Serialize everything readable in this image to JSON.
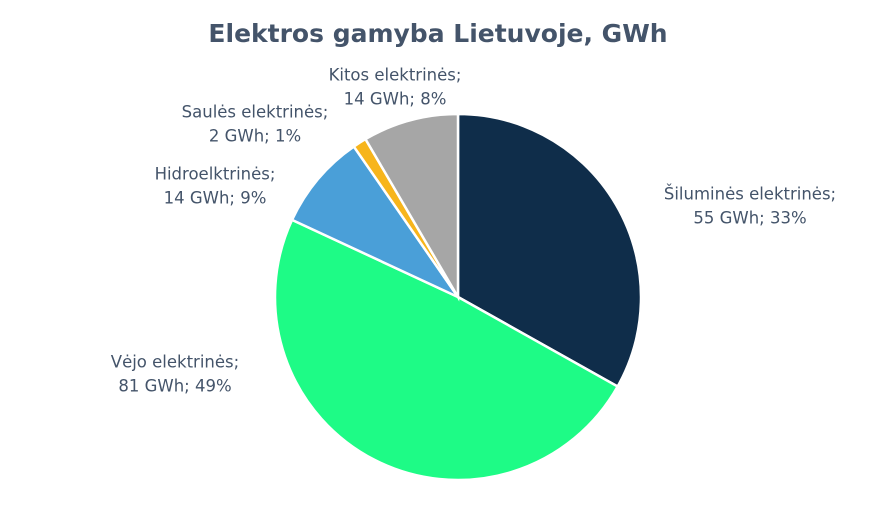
{
  "chart_data": {
    "type": "pie",
    "title": "Elektros gamyba Lietuvoje, GWh",
    "categories": [
      "Šiluminės elektrinės;",
      "Vėjo elektrinės;",
      "Hidroelktrinės;",
      "Saulės elektrinės;",
      "Kitos elektrinės;"
    ],
    "values": [
      55,
      81,
      14,
      2,
      14
    ],
    "value_labels": [
      "55 GWh; 33%",
      "81 GWh; 49%",
      "14 GWh; 9%",
      "2 GWh; 1%",
      "14 GWh; 8%"
    ],
    "colors": [
      "#0f2d4a",
      "#1efb86",
      "#4a9fd8",
      "#f7b51c",
      "#a6a6a6"
    ]
  }
}
